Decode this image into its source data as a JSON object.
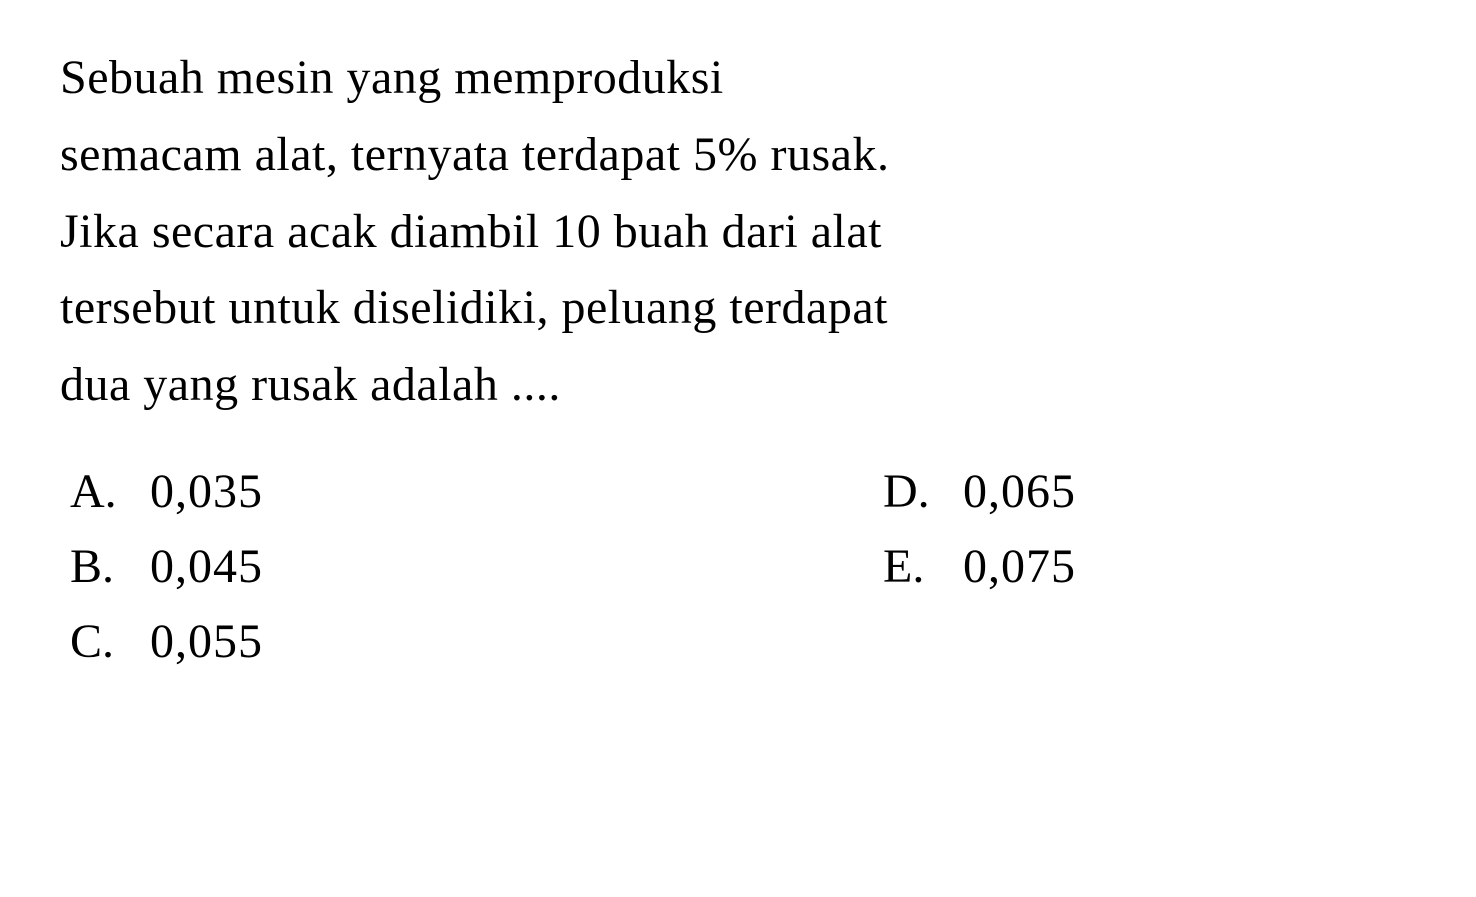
{
  "question": {
    "line1": "Sebuah mesin yang memproduksi",
    "line2": "semacam alat, ternyata terdapat 5% rusak.",
    "line3": "Jika secara acak diambil 10 buah dari alat",
    "line4": "tersebut untuk diselidiki, peluang terdapat",
    "line5": "dua yang rusak adalah ...."
  },
  "options": {
    "a": {
      "letter": "A.",
      "value": "0,035"
    },
    "b": {
      "letter": "B.",
      "value": "0,045"
    },
    "c": {
      "letter": "C.",
      "value": "0,055"
    },
    "d": {
      "letter": "D.",
      "value": "0,065"
    },
    "e": {
      "letter": "E.",
      "value": "0,075"
    }
  },
  "styling": {
    "background_color": "#ffffff",
    "text_color": "#000000",
    "font_family": "Georgia, Times New Roman, serif",
    "question_fontsize": 48,
    "option_fontsize": 48,
    "line_height": 1.6
  }
}
